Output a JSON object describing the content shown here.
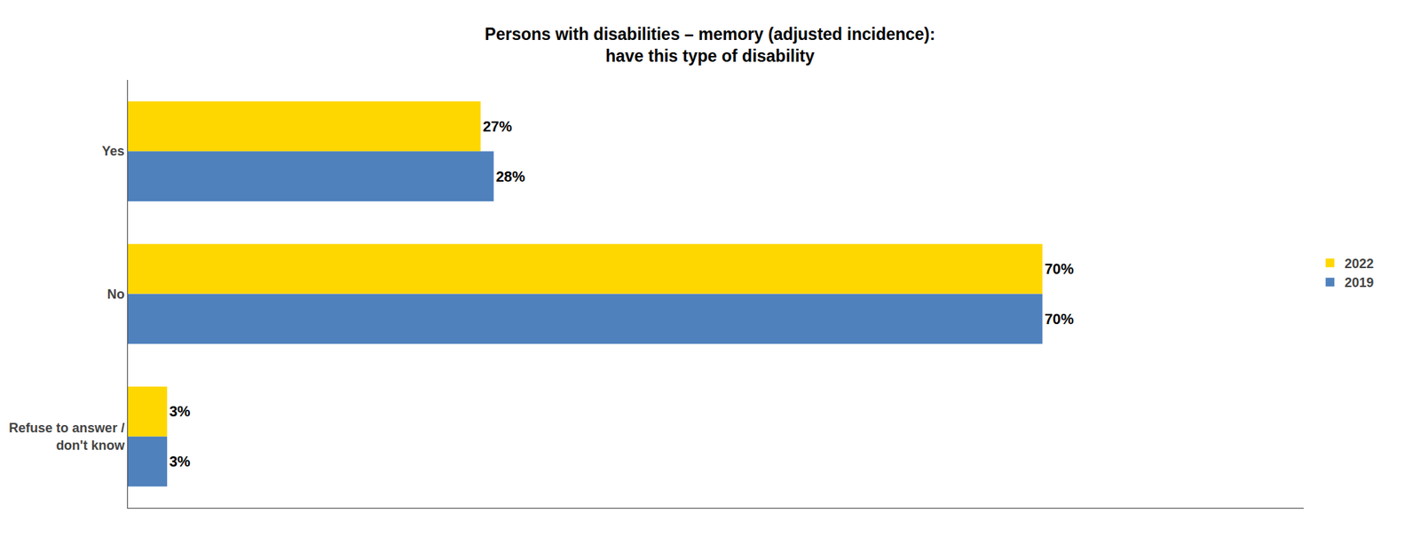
{
  "chart_data": {
    "type": "bar",
    "orientation": "horizontal",
    "title": "Persons with disabilities – memory (adjusted incidence):\nhave this type of disability",
    "categories": [
      "Yes",
      "No",
      "Refuse to answer /\ndon't know"
    ],
    "series": [
      {
        "name": "2022",
        "color": "#FFD700",
        "values": [
          27,
          70,
          3
        ],
        "value_labels": [
          "27%",
          "70%",
          "3%"
        ]
      },
      {
        "name": "2019",
        "color": "#4F81BD",
        "values": [
          28,
          70,
          3
        ],
        "value_labels": [
          "28%",
          "70%",
          "3%"
        ]
      }
    ],
    "xlim": [
      0,
      90
    ],
    "data_labels": true,
    "tick_labels": "y",
    "legend": "right",
    "grid": false
  }
}
